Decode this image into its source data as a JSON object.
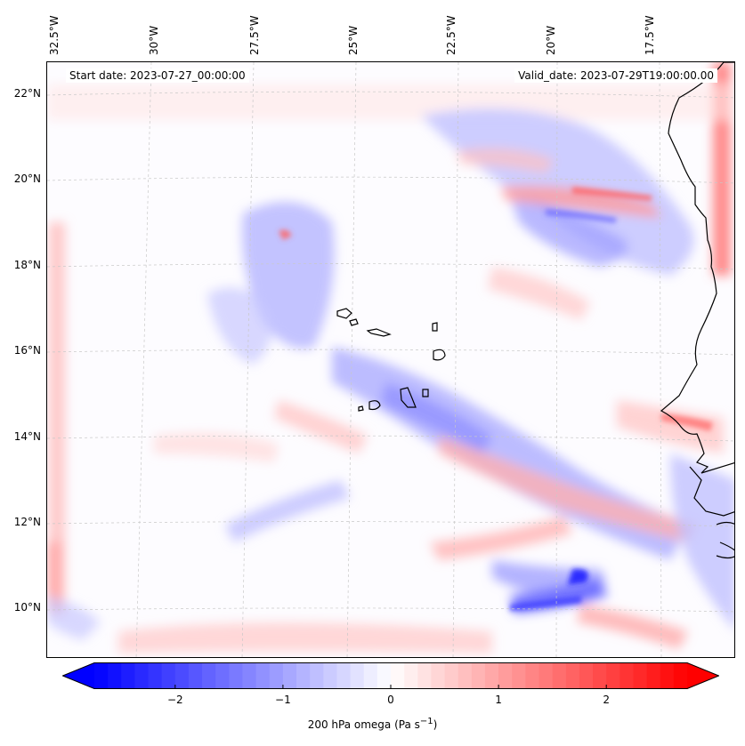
{
  "map": {
    "start_date_label": "Start date: 2023-07-27_00:00:00",
    "valid_date_label": "Valid_date: 2023-07-29T19:00:00.00",
    "lon_ticks": [
      "32.5°W",
      "30°W",
      "27.5°W",
      "25°W",
      "22.5°W",
      "20°W",
      "17.5°W"
    ],
    "lat_ticks": [
      "22°N",
      "20°N",
      "18°N",
      "16°N",
      "14°N",
      "12°N",
      "10°N"
    ],
    "field": "200 hPa omega",
    "colors": {
      "negative": "#0000ff",
      "neutral": "#ffffff",
      "positive": "#ff0000",
      "coastline": "#000000",
      "gridline": "#c8c8c8"
    }
  },
  "colorbar": {
    "title": "200 hPa omega (Pa s",
    "title_sup": "−1",
    "title_end": ")",
    "min": -2.75,
    "max": 2.75,
    "tick_labels": [
      "−2",
      "−1",
      "0",
      "1",
      "2"
    ],
    "tick_values": [
      -2,
      -1,
      0,
      1,
      2
    ]
  }
}
